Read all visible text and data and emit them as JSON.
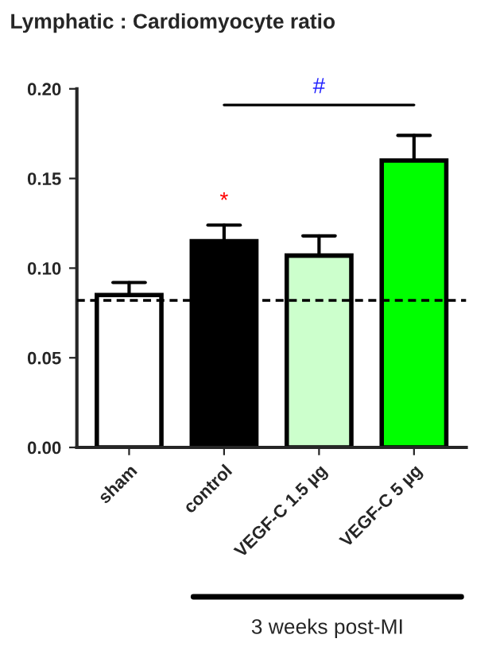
{
  "chart_data": {
    "type": "bar",
    "title": "Lymphatic : Cardiomyocyte ratio",
    "categories": [
      "sham",
      "control",
      "VEGF-C 1.5 µg",
      "VEGF-C 5 µg"
    ],
    "values": [
      0.085,
      0.115,
      0.107,
      0.16
    ],
    "colors": [
      "#ffffff",
      "#000000",
      "#ccffcc",
      "#00ff00"
    ],
    "errors": [
      [
        0.085,
        0.092
      ],
      [
        0.115,
        0.124
      ],
      [
        0.107,
        0.118
      ],
      [
        0.16,
        0.174
      ]
    ],
    "ylim": [
      0,
      0.2
    ],
    "yticks": [
      {
        "value": 0,
        "label": "0.00"
      },
      {
        "value": 0.05,
        "label": "0.05"
      },
      {
        "value": 0.1,
        "label": "0.10"
      },
      {
        "value": 0.15,
        "label": "0.15"
      },
      {
        "value": 0.2,
        "label": "0.20"
      }
    ],
    "ref_lines": [
      {
        "axis": "y",
        "value": 0.082,
        "color": "#000000",
        "line_style": "dashed"
      }
    ],
    "annotations": [
      "*",
      "#",
      "3 weeks post-MI"
    ],
    "grid": false,
    "legend": false
  }
}
